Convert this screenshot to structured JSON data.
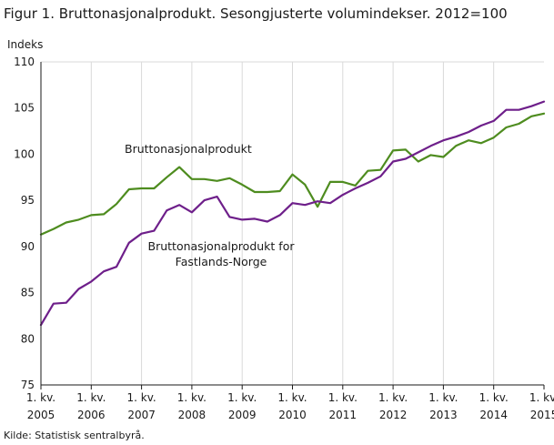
{
  "title": "Figur 1. Bruttonasjonalprodukt. Sesongjusterte volumindekser. 2012=100",
  "source": "Kilde: Statistisk sentralbyrå.",
  "chart_data": {
    "type": "line",
    "ylabel": "Indeks",
    "ylim": [
      75,
      110
    ],
    "yticks": [
      75,
      80,
      85,
      90,
      95,
      100,
      105,
      110
    ],
    "ytick_labels": [
      "75",
      "80",
      "85",
      "90",
      "95",
      "100",
      "105",
      "110"
    ],
    "grid": "vertical",
    "xticks": [
      {
        "line1": "1. kv.",
        "line2": "2005"
      },
      {
        "line1": "1. kv.",
        "line2": "2006"
      },
      {
        "line1": "1. kv.",
        "line2": "2007"
      },
      {
        "line1": "1. kv.",
        "line2": "2008"
      },
      {
        "line1": "1. kv.",
        "line2": "2009"
      },
      {
        "line1": "1. kv.",
        "line2": "2010"
      },
      {
        "line1": "1. kv.",
        "line2": "2011"
      },
      {
        "line1": "1. kv.",
        "line2": "2012"
      },
      {
        "line1": "1. kv.",
        "line2": "2013"
      },
      {
        "line1": "1. kv.",
        "line2": "2014"
      },
      {
        "line1": "1. kv.",
        "line2": "2015"
      }
    ],
    "x": [
      "2005K1",
      "2005K2",
      "2005K3",
      "2005K4",
      "2006K1",
      "2006K2",
      "2006K3",
      "2006K4",
      "2007K1",
      "2007K2",
      "2007K3",
      "2007K4",
      "2008K1",
      "2008K2",
      "2008K3",
      "2008K4",
      "2009K1",
      "2009K2",
      "2009K3",
      "2009K4",
      "2010K1",
      "2010K2",
      "2010K3",
      "2010K4",
      "2011K1",
      "2011K2",
      "2011K3",
      "2011K4",
      "2012K1",
      "2012K2",
      "2012K3",
      "2012K4",
      "2013K1",
      "2013K2",
      "2013K3",
      "2013K4",
      "2014K1",
      "2014K2",
      "2014K3",
      "2014K4",
      "2015K1"
    ],
    "series": [
      {
        "name": "Bruttonasjonalprodukt",
        "color": "#4e8c1f",
        "values": [
          91.3,
          91.9,
          92.6,
          92.9,
          93.4,
          93.5,
          94.6,
          96.2,
          96.3,
          96.3,
          97.5,
          98.6,
          97.3,
          97.3,
          97.1,
          97.4,
          96.7,
          95.9,
          95.9,
          96.0,
          97.8,
          96.7,
          94.3,
          97.0,
          97.0,
          96.6,
          98.2,
          98.3,
          100.4,
          100.5,
          99.2,
          99.9,
          99.7,
          100.9,
          101.5,
          101.2,
          101.8,
          102.9,
          103.3,
          104.1,
          104.4
        ]
      },
      {
        "name": "Bruttonasjonalprodukt  for Fastlands-Norge",
        "color": "#6e1f8a",
        "values": [
          81.5,
          83.8,
          83.9,
          85.4,
          86.2,
          87.3,
          87.8,
          90.4,
          91.4,
          91.7,
          93.9,
          94.5,
          93.7,
          95.0,
          95.4,
          93.2,
          92.9,
          93.0,
          92.7,
          93.4,
          94.7,
          94.5,
          94.9,
          94.7,
          95.6,
          96.3,
          96.9,
          97.6,
          99.2,
          99.5,
          100.2,
          100.9,
          101.5,
          101.9,
          102.4,
          103.1,
          103.6,
          104.8,
          104.8,
          105.2,
          105.7
        ]
      }
    ]
  }
}
